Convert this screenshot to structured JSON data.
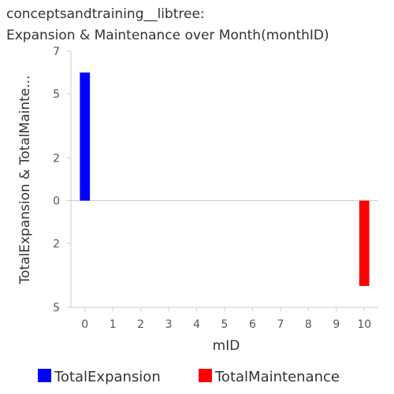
{
  "chart_data": {
    "type": "bar",
    "title_line1": "conceptsandtraining__libtree:",
    "title_line2": "Expansion & Maintenance over Month(monthID)",
    "xlabel": "mID",
    "ylabel": "TotalExpansion & TotalMainte...",
    "x": [
      0,
      1,
      2,
      3,
      4,
      5,
      6,
      7,
      8,
      9,
      10
    ],
    "ylim": [
      -5,
      7
    ],
    "y_tick_values": [
      7,
      5,
      2,
      0,
      -2,
      -5
    ],
    "y_tick_labels": [
      "7",
      "5",
      "2",
      "0",
      "2",
      "5"
    ],
    "grid": false,
    "legend_position": "bottom",
    "series": [
      {
        "name": "TotalExpansion",
        "color": "#0000ff",
        "points": [
          {
            "x": 0,
            "y": 6
          }
        ]
      },
      {
        "name": "TotalMaintenance",
        "color": "#ff0000",
        "points": [
          {
            "x": 10,
            "y": -4
          }
        ]
      }
    ]
  }
}
